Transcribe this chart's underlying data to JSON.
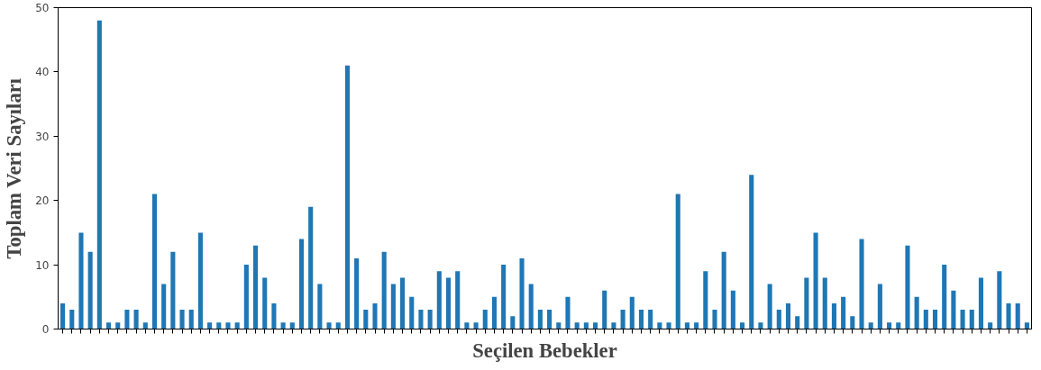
{
  "chart_data": {
    "type": "bar",
    "xlabel": "Seçilen Bebekler",
    "ylabel": "Toplam Veri Sayıları",
    "categories": [
      null,
      null,
      null,
      null,
      null,
      null,
      null,
      null,
      null,
      null,
      null,
      null,
      null,
      null,
      null,
      null,
      null,
      null,
      null,
      null,
      null,
      null,
      null,
      null,
      null,
      null,
      null,
      null,
      null,
      null,
      null,
      null,
      null,
      null,
      null,
      null,
      null,
      null,
      null,
      null,
      null,
      null,
      null,
      null,
      null,
      null,
      null,
      null,
      null,
      null,
      null,
      null,
      null,
      null,
      null,
      null,
      null,
      null,
      null,
      null,
      null,
      null,
      null,
      null,
      null,
      null,
      null,
      null,
      null,
      null,
      null,
      null,
      null,
      null,
      null,
      null,
      null,
      null,
      null,
      null,
      null,
      null,
      null,
      null,
      null,
      null,
      null,
      null,
      null,
      null,
      null,
      null,
      null,
      null,
      null,
      null,
      null,
      null,
      null,
      null,
      null,
      null,
      null,
      null,
      null,
      null
    ],
    "values": [
      4,
      3,
      15,
      12,
      48,
      1,
      1,
      3,
      3,
      1,
      21,
      7,
      12,
      3,
      3,
      15,
      1,
      1,
      1,
      1,
      10,
      13,
      8,
      4,
      1,
      1,
      14,
      19,
      7,
      1,
      1,
      41,
      11,
      3,
      4,
      12,
      7,
      8,
      5,
      3,
      3,
      9,
      8,
      9,
      1,
      1,
      3,
      5,
      10,
      2,
      11,
      7,
      3,
      3,
      1,
      5,
      1,
      1,
      1,
      6,
      1,
      3,
      5,
      3,
      3,
      1,
      1,
      21,
      1,
      1,
      9,
      3,
      12,
      6,
      1,
      24,
      1,
      7,
      3,
      4,
      2,
      8,
      15,
      8,
      4,
      5,
      2,
      14,
      1,
      7,
      1,
      1,
      13,
      5,
      3,
      3,
      10,
      6,
      3,
      3,
      8,
      1,
      9,
      4,
      4,
      1
    ],
    "color": "#1f77b4",
    "ylim": [
      0,
      50
    ],
    "yticks": [
      0,
      10,
      20,
      30,
      40,
      50
    ],
    "grid": false,
    "tick_labels": "y"
  }
}
